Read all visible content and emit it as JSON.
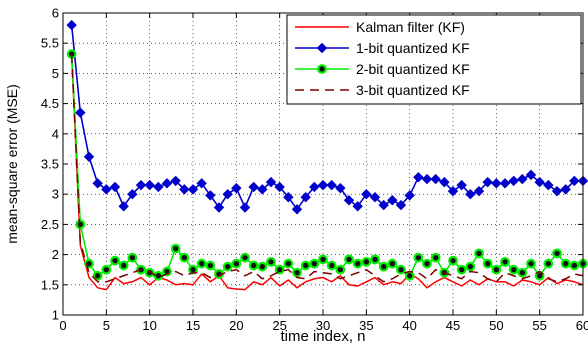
{
  "chart_data": {
    "type": "line",
    "title": "",
    "xlabel": "time index, n",
    "ylabel": "mean-square error (MSE)",
    "xlim": [
      0,
      60
    ],
    "ylim": [
      1,
      6
    ],
    "xticks": [
      0,
      5,
      10,
      15,
      20,
      25,
      30,
      35,
      40,
      45,
      50,
      55,
      60
    ],
    "yticks": [
      1,
      1.5,
      2,
      2.5,
      3,
      3.5,
      4,
      4.5,
      5,
      5.5,
      6
    ],
    "grid": "dotted",
    "legend_position": "top-right",
    "x": [
      1,
      2,
      3,
      4,
      5,
      6,
      7,
      8,
      9,
      10,
      11,
      12,
      13,
      14,
      15,
      16,
      17,
      18,
      19,
      20,
      21,
      22,
      23,
      24,
      25,
      26,
      27,
      28,
      29,
      30,
      31,
      32,
      33,
      34,
      35,
      36,
      37,
      38,
      39,
      40,
      41,
      42,
      43,
      44,
      45,
      46,
      47,
      48,
      49,
      50,
      51,
      52,
      53,
      54,
      55,
      56,
      57,
      58,
      59,
      60
    ],
    "series": [
      {
        "name": "Kalman filter (KF)",
        "color": "#ff0000",
        "line_style": "solid",
        "marker": "none",
        "values": [
          5.3,
          2.15,
          1.62,
          1.45,
          1.42,
          1.62,
          1.52,
          1.55,
          1.62,
          1.5,
          1.62,
          1.58,
          1.5,
          1.52,
          1.5,
          1.68,
          1.55,
          1.65,
          1.45,
          1.43,
          1.42,
          1.55,
          1.5,
          1.62,
          1.48,
          1.58,
          1.45,
          1.55,
          1.6,
          1.62,
          1.55,
          1.65,
          1.5,
          1.48,
          1.55,
          1.62,
          1.5,
          1.55,
          1.52,
          1.68,
          1.6,
          1.45,
          1.55,
          1.62,
          1.55,
          1.48,
          1.58,
          1.5,
          1.6,
          1.55,
          1.55,
          1.48,
          1.58,
          1.55,
          1.5,
          1.62,
          1.52,
          1.58,
          1.55,
          1.5
        ]
      },
      {
        "name": "1-bit quantized KF",
        "color": "#0000cc",
        "line_style": "solid",
        "marker": "diamond",
        "values": [
          5.8,
          4.35,
          3.62,
          3.18,
          3.08,
          3.12,
          2.8,
          3.0,
          3.15,
          3.15,
          3.12,
          3.18,
          3.22,
          3.08,
          3.08,
          3.18,
          2.98,
          2.78,
          3.0,
          3.1,
          2.78,
          3.12,
          3.08,
          3.2,
          3.12,
          2.95,
          2.75,
          2.95,
          3.12,
          3.15,
          3.15,
          3.1,
          2.9,
          2.8,
          3.0,
          2.95,
          2.82,
          2.9,
          2.82,
          2.98,
          3.28,
          3.25,
          3.25,
          3.2,
          3.05,
          3.15,
          3.0,
          3.05,
          3.2,
          3.18,
          3.18,
          3.22,
          3.25,
          3.32,
          3.2,
          3.15,
          3.05,
          3.08,
          3.22,
          3.22
        ]
      },
      {
        "name": "2-bit quantized KF",
        "color": "#00ee00",
        "line_style": "solid",
        "marker": "circle",
        "values": [
          5.32,
          2.5,
          1.85,
          1.65,
          1.75,
          1.9,
          1.82,
          1.95,
          1.75,
          1.7,
          1.65,
          1.72,
          2.1,
          1.95,
          1.75,
          1.85,
          1.82,
          1.68,
          1.8,
          1.85,
          1.95,
          1.82,
          1.8,
          1.88,
          1.75,
          1.85,
          1.7,
          1.82,
          1.85,
          1.92,
          1.82,
          1.75,
          1.92,
          1.85,
          1.88,
          1.92,
          1.8,
          1.85,
          1.75,
          1.65,
          1.95,
          1.85,
          1.95,
          1.7,
          1.9,
          1.75,
          1.8,
          2.02,
          1.85,
          1.75,
          1.88,
          1.75,
          1.7,
          1.85,
          1.65,
          1.85,
          2.02,
          1.85,
          1.82,
          1.85
        ]
      },
      {
        "name": "3-bit quantized KF",
        "color": "#7a0000",
        "line_style": "dashed",
        "marker": "none",
        "values": [
          5.32,
          2.2,
          1.7,
          1.55,
          1.55,
          1.6,
          1.65,
          1.7,
          1.75,
          1.72,
          1.62,
          1.68,
          1.72,
          1.65,
          1.7,
          1.7,
          1.62,
          1.65,
          1.72,
          1.75,
          1.65,
          1.72,
          1.6,
          1.65,
          1.72,
          1.75,
          1.62,
          1.6,
          1.72,
          1.7,
          1.68,
          1.6,
          1.65,
          1.7,
          1.75,
          1.65,
          1.55,
          1.6,
          1.68,
          1.72,
          1.7,
          1.6,
          1.75,
          1.7,
          1.65,
          1.6,
          1.72,
          1.7,
          1.6,
          1.55,
          1.7,
          1.65,
          1.6,
          1.65,
          1.72,
          1.6,
          1.55,
          1.6,
          1.68,
          1.65
        ]
      }
    ]
  }
}
